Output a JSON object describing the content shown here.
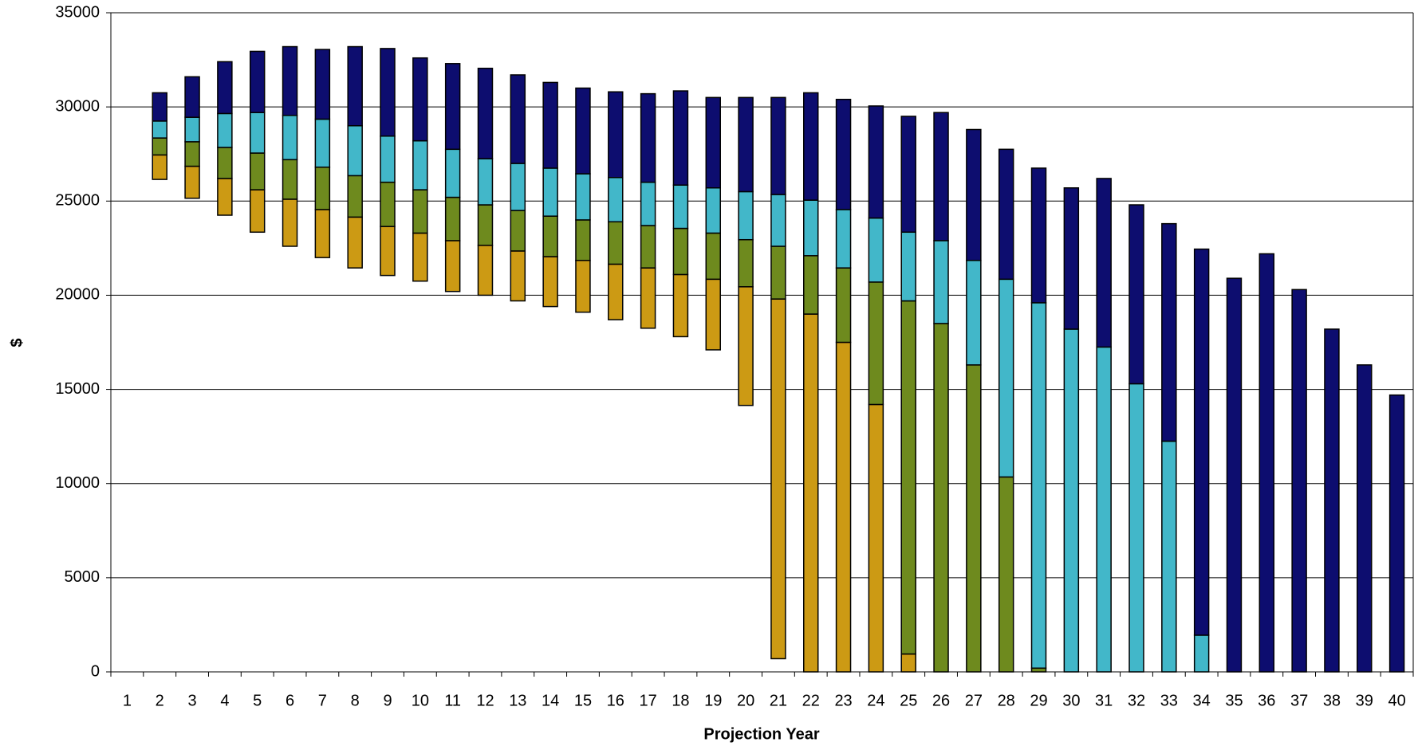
{
  "chart_data": {
    "type": "floating-stacked-bar",
    "x_label": "Projection Year",
    "y_label": "$",
    "categories": [
      "1",
      "2",
      "3",
      "4",
      "5",
      "6",
      "7",
      "8",
      "9",
      "10",
      "11",
      "12",
      "13",
      "14",
      "15",
      "16",
      "17",
      "18",
      "19",
      "20",
      "21",
      "22",
      "23",
      "24",
      "25",
      "26",
      "27",
      "28",
      "29",
      "30",
      "31",
      "32",
      "33",
      "34",
      "35",
      "36",
      "37",
      "38",
      "39",
      "40"
    ],
    "series": [
      {
        "color": "none",
        "values": [
          null,
          26150,
          25150,
          24250,
          23350,
          22600,
          22000,
          21450,
          21050,
          20750,
          20200,
          20000,
          19700,
          19400,
          19100,
          18700,
          18250,
          17800,
          17100,
          14150,
          700,
          null,
          null,
          null,
          null,
          null,
          null,
          null,
          null,
          null,
          null,
          null,
          null,
          null,
          null,
          null,
          null,
          null,
          null,
          null
        ]
      },
      {
        "color": "#cc9a14",
        "values": [
          null,
          1300,
          1700,
          1950,
          2250,
          2500,
          2550,
          2700,
          2600,
          2550,
          2700,
          2650,
          2650,
          2650,
          2750,
          2950,
          3200,
          3300,
          3750,
          6300,
          19100,
          19000,
          17500,
          14200,
          950,
          null,
          null,
          null,
          null,
          null,
          null,
          null,
          null,
          null,
          null,
          null,
          null,
          null,
          null,
          null
        ]
      },
      {
        "color": "#6e8a1e",
        "values": [
          null,
          900,
          1300,
          1650,
          1950,
          2100,
          2250,
          2200,
          2350,
          2300,
          2300,
          2150,
          2150,
          2150,
          2150,
          2250,
          2250,
          2450,
          2450,
          2500,
          2800,
          3100,
          3950,
          6500,
          18750,
          18500,
          16300,
          10350,
          200,
          null,
          null,
          null,
          null,
          null,
          null,
          null,
          null,
          null,
          null,
          null
        ]
      },
      {
        "color": "#42b7c9",
        "values": [
          null,
          900,
          1300,
          1800,
          2150,
          2350,
          2550,
          2650,
          2450,
          2600,
          2550,
          2450,
          2500,
          2550,
          2450,
          2350,
          2300,
          2300,
          2400,
          2550,
          2750,
          2950,
          3100,
          3400,
          3650,
          4400,
          5550,
          10500,
          19400,
          18200,
          17250,
          15300,
          12250,
          1950,
          null,
          null,
          null,
          null,
          null,
          null
        ]
      },
      {
        "color": "#0d0d6f",
        "values": [
          null,
          1500,
          2150,
          2750,
          3250,
          3650,
          3700,
          4200,
          4650,
          4400,
          4550,
          4800,
          4700,
          4550,
          4550,
          4550,
          4700,
          5000,
          4800,
          5000,
          5150,
          5700,
          5850,
          5950,
          6150,
          6800,
          6950,
          6900,
          7150,
          7500,
          8950,
          9500,
          11550,
          20500,
          20900,
          22200,
          20300,
          18200,
          16300,
          14700
        ]
      }
    ],
    "ylim": [
      0,
      35000
    ],
    "yticks": [
      0,
      5000,
      10000,
      15000,
      20000,
      25000,
      30000,
      35000
    ],
    "grid": true
  }
}
